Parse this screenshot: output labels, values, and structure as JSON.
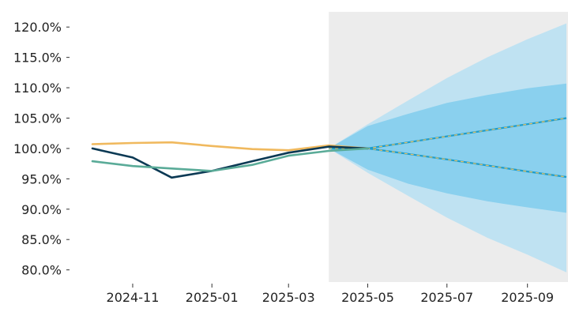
{
  "chart_data": {
    "type": "line",
    "title": "",
    "xlabel": "",
    "ylabel": "",
    "x_range": [
      "2024-10-01",
      "2025-10-01"
    ],
    "ylim": [
      78.0,
      122.5
    ],
    "y_ticks": [
      80,
      85,
      90,
      95,
      100,
      105,
      110,
      115,
      120
    ],
    "y_tick_labels": [
      "80.0%",
      "85.0%",
      "90.0%",
      "95.0%",
      "100.0%",
      "105.0%",
      "110.0%",
      "115.0%",
      "120.0%"
    ],
    "x_ticks": [
      "2024-11-01",
      "2025-01-01",
      "2025-03-01",
      "2025-05-01",
      "2025-07-01",
      "2025-09-01"
    ],
    "x_tick_labels": [
      "2024-11",
      "2025-01",
      "2025-03",
      "2025-05",
      "2025-07",
      "2025-09"
    ],
    "grid": false,
    "legend": "none",
    "forecast_region": {
      "start": "2025-04-01",
      "end": "2025-10-01",
      "color": "#ececec"
    },
    "series": [
      {
        "color": "#f0b95e",
        "x": [
          "2024-10-01",
          "2024-11-01",
          "2024-12-01",
          "2025-01-01",
          "2025-02-01",
          "2025-03-01",
          "2025-04-01",
          "2025-05-01"
        ],
        "values": [
          100.7,
          100.9,
          101.0,
          100.4,
          99.9,
          99.7,
          100.5,
          100.0
        ]
      },
      {
        "color": "#0b3954",
        "x": [
          "2024-10-01",
          "2024-11-01",
          "2024-12-01",
          "2025-01-01",
          "2025-02-01",
          "2025-03-01",
          "2025-04-01",
          "2025-05-01"
        ],
        "values": [
          100.0,
          98.5,
          95.2,
          96.3,
          97.9,
          99.3,
          100.3,
          100.0
        ]
      },
      {
        "color": "#5aab98",
        "x": [
          "2024-10-01",
          "2024-11-01",
          "2024-12-01",
          "2025-01-01",
          "2025-02-01",
          "2025-03-01",
          "2025-04-01",
          "2025-05-01"
        ],
        "values": [
          97.9,
          97.1,
          96.7,
          96.3,
          97.3,
          98.8,
          99.6,
          100.0
        ]
      }
    ],
    "forecast": {
      "x": [
        "2025-04-01",
        "2025-05-01",
        "2025-06-01",
        "2025-07-01",
        "2025-08-01",
        "2025-09-01",
        "2025-10-01"
      ],
      "upper_line": [
        100.0,
        100.0,
        101.0,
        102.0,
        103.0,
        104.0,
        105.0
      ],
      "lower_line": [
        100.0,
        100.0,
        99.1,
        98.2,
        97.2,
        96.2,
        95.3
      ],
      "inner_band_upper": [
        100.0,
        103.7,
        105.7,
        107.5,
        108.8,
        109.9,
        110.7
      ],
      "inner_band_lower": [
        100.0,
        96.5,
        94.2,
        92.6,
        91.3,
        90.3,
        89.4
      ],
      "outer_band_upper": [
        100.0,
        104.0,
        107.9,
        111.6,
        115.0,
        118.0,
        120.6
      ],
      "outer_band_lower": [
        100.0,
        96.0,
        92.2,
        88.6,
        85.3,
        82.5,
        79.6
      ],
      "line_color": "#1d9dcc",
      "line_dash_color": "#e8c060",
      "inner_band_color": "#8ad0ee",
      "outer_band_color": "#bfe2f2"
    }
  }
}
